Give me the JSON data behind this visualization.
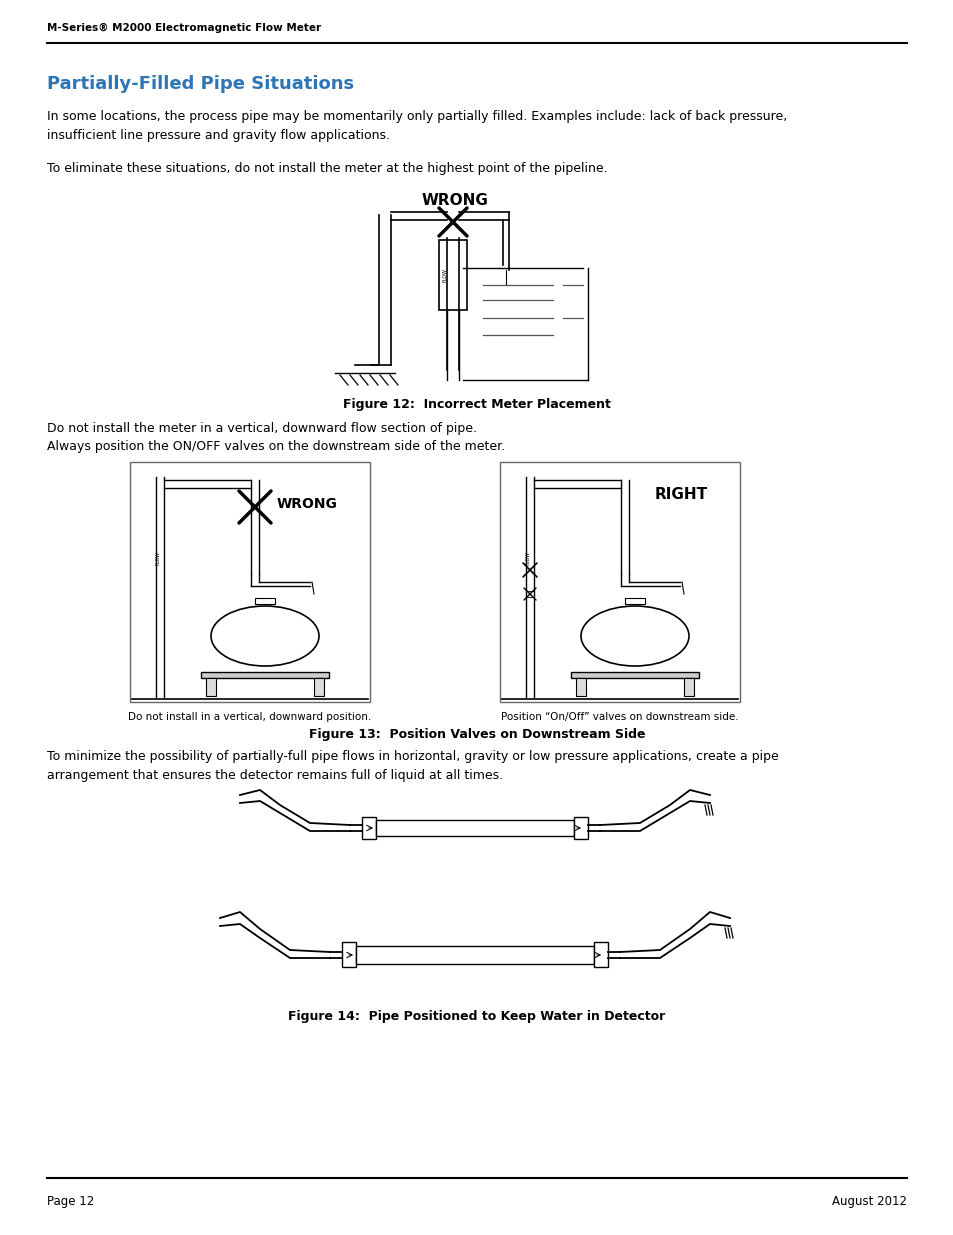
{
  "header_text": "M-Series® M2000 Electromagnetic Flow Meter",
  "title": "Partially-Filled Pipe Situations",
  "title_color": "#2E75B6",
  "body_text1": "In some locations, the process pipe may be momentarily only partially filled. Examples include: lack of back pressure,\ninsufficient line pressure and gravity flow applications.",
  "body_text2": "To eliminate these situations, do not install the meter at the highest point of the pipeline.",
  "fig12_label": "Figure 12:  Incorrect Meter Placement",
  "wrong_label": "WRONG",
  "right_label": "RIGHT",
  "fig13_label": "Figure 13:  Position Valves on Downstream Side",
  "fig14_label": "Figure 14:  Pipe Positioned to Keep Water in Detector",
  "wrong_label2": "WRONG",
  "body_text_mid1": "Do not install the meter in a vertical, downward flow section of pipe.",
  "body_text_mid2": "Always position the ON/OFF valves on the downstream side of the meter.",
  "caption_wrong": "Do not install in a vertical, downward position.",
  "caption_right": "Position “On/Off” valves on downstream side.",
  "body_text3": "To minimize the possibility of partially-full pipe flows in horizontal, gravity or low pressure applications, create a pipe\narrangement that ensures the detector remains full of liquid at all times.",
  "footer_left": "Page 12",
  "footer_right": "August 2012",
  "bg_color": "#ffffff",
  "text_color": "#000000",
  "header_line_color": "#000000",
  "footer_line_color": "#000000"
}
